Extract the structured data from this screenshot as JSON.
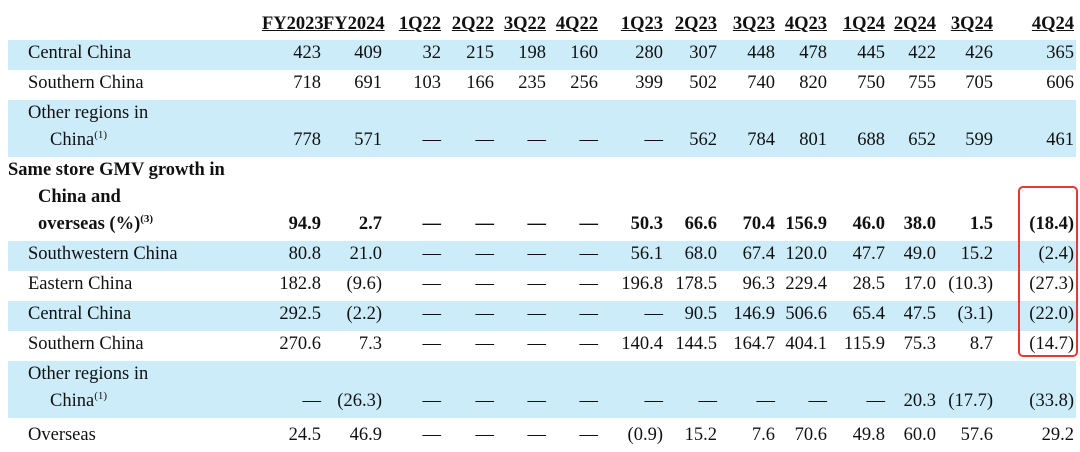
{
  "table": {
    "columns": [
      "FY2023",
      "FY2024",
      "1Q22",
      "2Q22",
      "3Q22",
      "4Q22",
      "1Q23",
      "2Q23",
      "3Q23",
      "4Q23",
      "1Q24",
      "2Q24",
      "3Q24",
      "4Q24"
    ],
    "rows": [
      {
        "label": [
          "Central China"
        ],
        "values": [
          "423",
          "409",
          "32",
          "215",
          "198",
          "160",
          "280",
          "307",
          "448",
          "478",
          "445",
          "422",
          "426",
          "365"
        ]
      },
      {
        "label": [
          "Southern China"
        ],
        "values": [
          "718",
          "691",
          "103",
          "166",
          "235",
          "256",
          "399",
          "502",
          "740",
          "820",
          "750",
          "755",
          "705",
          "606"
        ]
      },
      {
        "label": [
          "Other regions in",
          "China"
        ],
        "note": "(1)",
        "values": [
          "778",
          "571",
          "—",
          "—",
          "—",
          "—",
          "—",
          "562",
          "784",
          "801",
          "688",
          "652",
          "599",
          "461"
        ]
      },
      {
        "label": [
          "Same store GMV growth in",
          "China and",
          "overseas (%)"
        ],
        "note": "(3)",
        "bold": true,
        "values": [
          "94.9",
          "2.7",
          "—",
          "—",
          "—",
          "—",
          "50.3",
          "66.6",
          "70.4",
          "156.9",
          "46.0",
          "38.0",
          "1.5",
          "(18.4)"
        ]
      },
      {
        "label": [
          "Southwestern China"
        ],
        "values": [
          "80.8",
          "21.0",
          "—",
          "—",
          "—",
          "—",
          "56.1",
          "68.0",
          "67.4",
          "120.0",
          "47.7",
          "49.0",
          "15.2",
          "(2.4)"
        ]
      },
      {
        "label": [
          "Eastern China"
        ],
        "values": [
          "182.8",
          "(9.6)",
          "—",
          "—",
          "—",
          "—",
          "196.8",
          "178.5",
          "96.3",
          "229.4",
          "28.5",
          "17.0",
          "(10.3)",
          "(27.3)"
        ]
      },
      {
        "label": [
          "Central China"
        ],
        "values": [
          "292.5",
          "(2.2)",
          "—",
          "—",
          "—",
          "—",
          "—",
          "90.5",
          "146.9",
          "506.6",
          "65.4",
          "47.5",
          "(3.1)",
          "(22.0)"
        ]
      },
      {
        "label": [
          "Southern China"
        ],
        "values": [
          "270.6",
          "7.3",
          "—",
          "—",
          "—",
          "—",
          "140.4",
          "144.5",
          "164.7",
          "404.1",
          "115.9",
          "75.3",
          "8.7",
          "(14.7)"
        ]
      },
      {
        "label": [
          "Other regions in",
          "China"
        ],
        "note": "(1)",
        "values": [
          "—",
          "(26.3)",
          "—",
          "—",
          "—",
          "—",
          "—",
          "—",
          "—",
          "—",
          "—",
          "20.3",
          "(17.7)",
          "(33.8)"
        ]
      },
      {
        "label": [
          "Overseas"
        ],
        "values": [
          "24.5",
          "46.9",
          "—",
          "—",
          "—",
          "—",
          "(0.9)",
          "15.2",
          "7.6",
          "70.6",
          "49.8",
          "60.0",
          "57.6",
          "29.2"
        ]
      }
    ]
  }
}
